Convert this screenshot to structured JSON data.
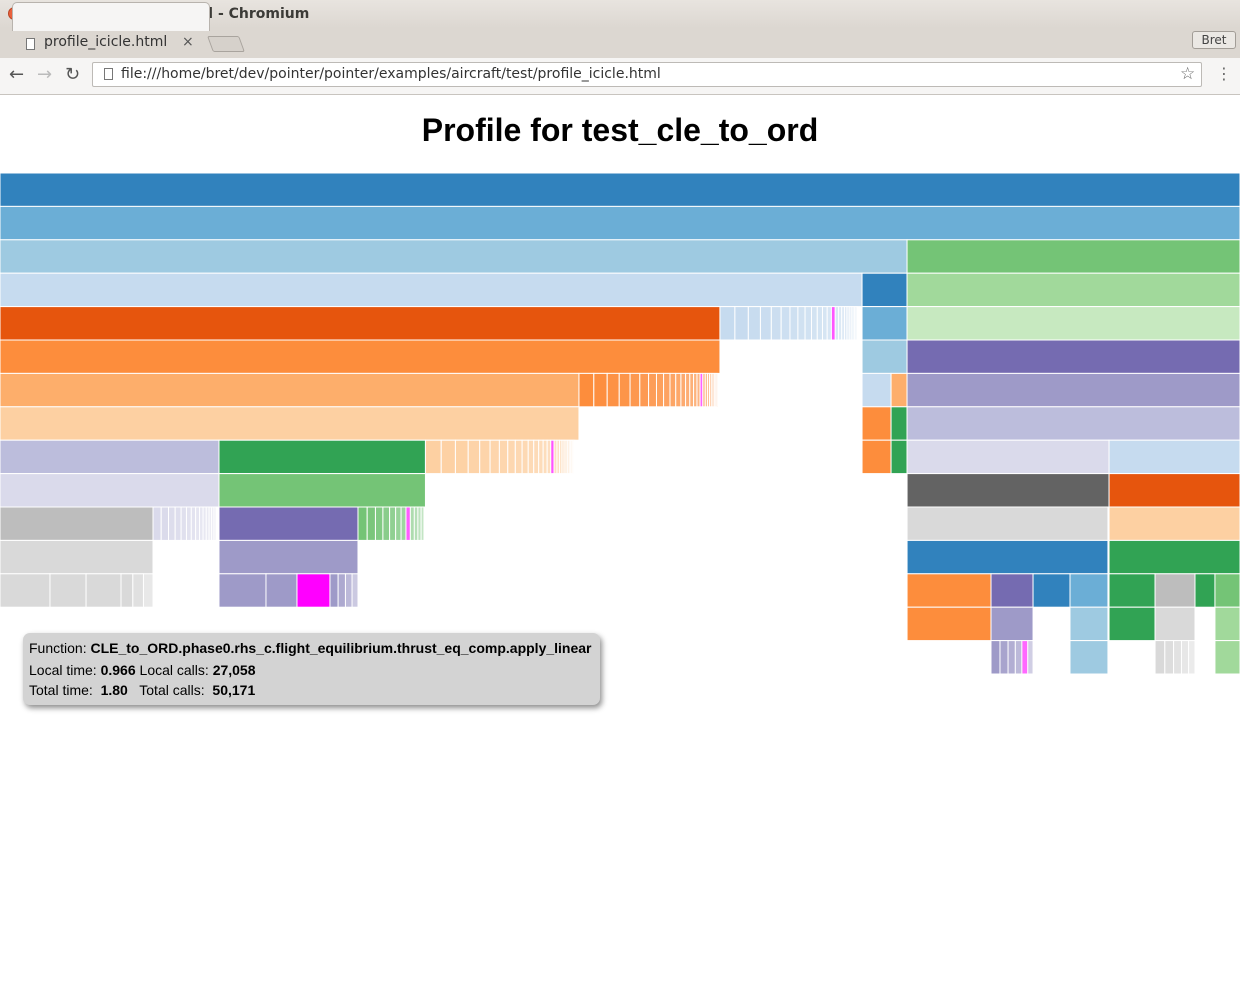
{
  "window": {
    "title": "profile_icicle.html - Chromium"
  },
  "tab": {
    "label": "profile_icicle.html",
    "close": "×"
  },
  "profile": {
    "name": "Bret"
  },
  "toolbar": {
    "back": "←",
    "forward": "→",
    "reload": "↻",
    "url": "file:///home/bret/dev/pointer/pointer/examples/aircraft/test/profile_icicle.html",
    "star": "☆",
    "menu": "⋮"
  },
  "page": {
    "title": "Profile for test_cle_to_ord"
  },
  "tooltip": {
    "function_label": "Function:",
    "function_value": "CLE_to_ORD.phase0.rhs_c.flight_equilibrium.thrust_eq_comp.apply_linear",
    "local_time_label": "Local time:",
    "local_time_value": "0.966",
    "local_calls_label": "Local calls:",
    "local_calls_value": "27,058",
    "total_time_label": "Total time:",
    "total_time_value": "1.80",
    "total_calls_label": "Total calls:",
    "total_calls_value": "50,171"
  },
  "colors": {
    "highlight": "#ff00ff"
  },
  "chart_data": {
    "type": "icicle",
    "depths": 15,
    "cells": [
      {
        "d": 0,
        "x0": 0,
        "x1": 1,
        "c": "#3182bd"
      },
      {
        "d": 1,
        "x0": 0,
        "x1": 1,
        "c": "#6baed6"
      },
      {
        "d": 2,
        "x0": 0,
        "x1": 0.7315,
        "c": "#9ecae1"
      },
      {
        "d": 2,
        "x0": 0.7315,
        "x1": 1,
        "c": "#74c476"
      },
      {
        "d": 3,
        "x0": 0,
        "x1": 0.6952,
        "c": "#c6dbef"
      },
      {
        "d": 3,
        "x0": 0.6952,
        "x1": 0.7315,
        "c": "#3182bd"
      },
      {
        "d": 3,
        "x0": 0.7315,
        "x1": 1,
        "c": "#a1d99b"
      },
      {
        "d": 4,
        "x0": 0,
        "x1": 0.5806,
        "c": "#e6550d"
      },
      {
        "d": 4,
        "x0": 0.5806,
        "x1": 0.6915,
        "c": "#c6dbef",
        "stripes": 24,
        "hl": 0.55
      },
      {
        "d": 4,
        "x0": 0.6952,
        "x1": 0.7315,
        "c": "#6baed6"
      },
      {
        "d": 4,
        "x0": 0.7315,
        "x1": 1,
        "c": "#c7e9c0"
      },
      {
        "d": 5,
        "x0": 0,
        "x1": 0.5806,
        "c": "#fd8d3c"
      },
      {
        "d": 5,
        "x0": 0.6952,
        "x1": 0.7315,
        "c": "#9ecae1"
      },
      {
        "d": 5,
        "x0": 0.7315,
        "x1": 1,
        "c": "#756bb1"
      },
      {
        "d": 6,
        "x0": 0,
        "x1": 0.4669,
        "c": "#fdae6b"
      },
      {
        "d": 6,
        "x0": 0.4669,
        "x1": 0.579,
        "c": "#fd8d3c",
        "stripes": 26,
        "hl": 0.6
      },
      {
        "d": 6,
        "x0": 0.6952,
        "x1": 0.7186,
        "c": "#c6dbef"
      },
      {
        "d": 6,
        "x0": 0.7186,
        "x1": 0.7315,
        "c": "#fdae6b"
      },
      {
        "d": 6,
        "x0": 0.7315,
        "x1": 1,
        "c": "#9e9ac8"
      },
      {
        "d": 7,
        "x0": 0,
        "x1": 0.4669,
        "c": "#fdd0a2"
      },
      {
        "d": 7,
        "x0": 0.6952,
        "x1": 0.7186,
        "c": "#fd8d3c"
      },
      {
        "d": 7,
        "x0": 0.7186,
        "x1": 0.7315,
        "c": "#31a354"
      },
      {
        "d": 7,
        "x0": 0.7315,
        "x1": 1,
        "c": "#bcbddc"
      },
      {
        "d": 8,
        "x0": 0,
        "x1": 0.1766,
        "c": "#bcbddc"
      },
      {
        "d": 8,
        "x0": 0.1766,
        "x1": 0.3431,
        "c": "#31a354"
      },
      {
        "d": 8,
        "x0": 0.3431,
        "x1": 0.4637,
        "c": "#fdd0a2",
        "stripes": 28,
        "hl": 0.55
      },
      {
        "d": 8,
        "x0": 0.6952,
        "x1": 0.7186,
        "c": "#fd8d3c"
      },
      {
        "d": 8,
        "x0": 0.7186,
        "x1": 0.7315,
        "c": "#31a354"
      },
      {
        "d": 8,
        "x0": 0.7315,
        "x1": 0.8944,
        "c": "#dadaeb"
      },
      {
        "d": 8,
        "x0": 0.8944,
        "x1": 1,
        "c": "#c6dbef"
      },
      {
        "d": 9,
        "x0": 0,
        "x1": 0.1766,
        "c": "#dadaeb"
      },
      {
        "d": 9,
        "x0": 0.1766,
        "x1": 0.3431,
        "c": "#74c476"
      },
      {
        "d": 9,
        "x0": 0.7315,
        "x1": 0.8944,
        "c": "#636363"
      },
      {
        "d": 9,
        "x0": 0.8944,
        "x1": 1,
        "c": "#e6550d"
      },
      {
        "d": 10,
        "x0": 0,
        "x1": 0.1234,
        "c": "#bdbdbd"
      },
      {
        "d": 10,
        "x0": 0.1234,
        "x1": 0.1742,
        "c": "#dadaeb",
        "stripes": 14
      },
      {
        "d": 10,
        "x0": 0.1766,
        "x1": 0.2887,
        "c": "#756bb1"
      },
      {
        "d": 10,
        "x0": 0.2887,
        "x1": 0.3419,
        "c": "#74c476",
        "stripes": 12,
        "hl": 0.55
      },
      {
        "d": 10,
        "x0": 0.7315,
        "x1": 0.8935,
        "c": "#d9d9d9"
      },
      {
        "d": 10,
        "x0": 0.8944,
        "x1": 1,
        "c": "#fdd0a2"
      },
      {
        "d": 11,
        "x0": 0,
        "x1": 0.1234,
        "c": "#d9d9d9"
      },
      {
        "d": 11,
        "x0": 0.1766,
        "x1": 0.2887,
        "c": "#9e9ac8"
      },
      {
        "d": 11,
        "x0": 0.7315,
        "x1": 0.8935,
        "c": "#3182bd"
      },
      {
        "d": 11,
        "x0": 0.8944,
        "x1": 1,
        "c": "#31a354"
      },
      {
        "d": 12,
        "x0": 0,
        "x1": 0.0403,
        "c": "#d9d9d9"
      },
      {
        "d": 12,
        "x0": 0.0403,
        "x1": 0.0694,
        "c": "#d9d9d9"
      },
      {
        "d": 12,
        "x0": 0.0694,
        "x1": 0.0976,
        "c": "#d9d9d9"
      },
      {
        "d": 12,
        "x0": 0.0976,
        "x1": 0.1234,
        "c": "#d9d9d9",
        "stripes": 3
      },
      {
        "d": 12,
        "x0": 0.1766,
        "x1": 0.2145,
        "c": "#9e9ac8"
      },
      {
        "d": 12,
        "x0": 0.2145,
        "x1": 0.2395,
        "c": "#9e9ac8"
      },
      {
        "d": 12,
        "x0": 0.2395,
        "x1": 0.2661,
        "c": "#ff00ff"
      },
      {
        "d": 12,
        "x0": 0.2661,
        "x1": 0.2887,
        "c": "#9e9ac8",
        "stripes": 4
      },
      {
        "d": 12,
        "x0": 0.7315,
        "x1": 0.7992,
        "c": "#fd8d3c"
      },
      {
        "d": 12,
        "x0": 0.7992,
        "x1": 0.8331,
        "c": "#756bb1"
      },
      {
        "d": 12,
        "x0": 0.8331,
        "x1": 0.8629,
        "c": "#3182bd"
      },
      {
        "d": 12,
        "x0": 0.8629,
        "x1": 0.8935,
        "c": "#6baed6"
      },
      {
        "d": 12,
        "x0": 0.8944,
        "x1": 0.9315,
        "c": "#31a354"
      },
      {
        "d": 12,
        "x0": 0.9315,
        "x1": 0.9637,
        "c": "#bdbdbd"
      },
      {
        "d": 12,
        "x0": 0.9637,
        "x1": 0.9798,
        "c": "#31a354"
      },
      {
        "d": 12,
        "x0": 0.9798,
        "x1": 1,
        "c": "#74c476"
      },
      {
        "d": 13,
        "x0": 0.7315,
        "x1": 0.7992,
        "c": "#fd8d3c"
      },
      {
        "d": 13,
        "x0": 0.7992,
        "x1": 0.8331,
        "c": "#9e9ac8"
      },
      {
        "d": 13,
        "x0": 0.8629,
        "x1": 0.8935,
        "c": "#9ecae1"
      },
      {
        "d": 13,
        "x0": 0.8944,
        "x1": 0.9315,
        "c": "#31a354"
      },
      {
        "d": 13,
        "x0": 0.9315,
        "x1": 0.9637,
        "c": "#d9d9d9"
      },
      {
        "d": 13,
        "x0": 0.9798,
        "x1": 1,
        "c": "#a1d99b"
      },
      {
        "d": 14,
        "x0": 0.7992,
        "x1": 0.8331,
        "c": "#9e9ac8",
        "stripes": 6,
        "hl": 0.6
      },
      {
        "d": 14,
        "x0": 0.8629,
        "x1": 0.8935,
        "c": "#9ecae1"
      },
      {
        "d": 14,
        "x0": 0.9315,
        "x1": 0.9637,
        "c": "#d9d9d9",
        "stripes": 5
      },
      {
        "d": 14,
        "x0": 0.9798,
        "x1": 1,
        "c": "#a1d99b"
      }
    ]
  }
}
